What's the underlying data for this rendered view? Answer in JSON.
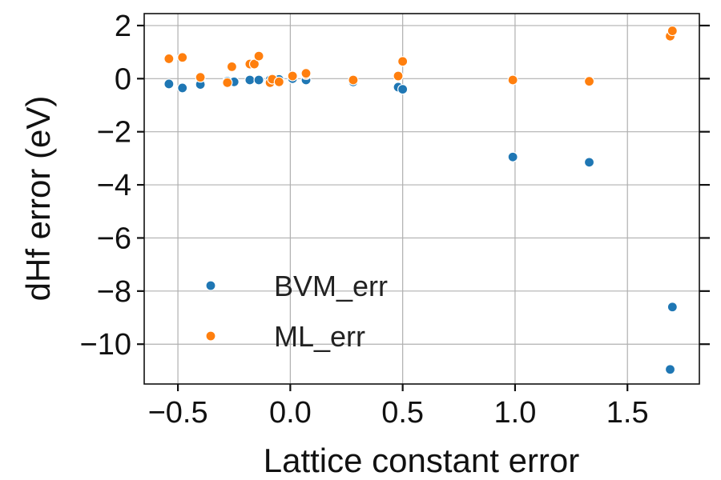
{
  "chart_data": {
    "type": "scatter",
    "title": "",
    "xlabel": "Lattice constant error",
    "ylabel": "dHf error (eV)",
    "xlim": [
      -0.65,
      1.82
    ],
    "ylim": [
      -11.5,
      2.45
    ],
    "xticks": [
      -0.5,
      0.0,
      0.5,
      1.0,
      1.5
    ],
    "xtick_labels": [
      "−0.5",
      "0.0",
      "0.5",
      "1.0",
      "1.5"
    ],
    "yticks": [
      2,
      0,
      -2,
      -4,
      -6,
      -8,
      -10
    ],
    "ytick_labels": [
      "2",
      "0",
      "−2",
      "−4",
      "−6",
      "−8",
      "−10"
    ],
    "grid": true,
    "legend_position": "lower-left",
    "series": [
      {
        "name": "BVM_err",
        "color": "#1f77b4",
        "points": [
          [
            -0.54,
            -0.2
          ],
          [
            -0.48,
            -0.35
          ],
          [
            -0.4,
            -0.22
          ],
          [
            -0.28,
            -0.1
          ],
          [
            -0.25,
            -0.12
          ],
          [
            -0.18,
            -0.05
          ],
          [
            -0.14,
            -0.05
          ],
          [
            -0.09,
            -0.04
          ],
          [
            -0.05,
            -0.03
          ],
          [
            0.01,
            0.0
          ],
          [
            0.07,
            -0.05
          ],
          [
            0.28,
            -0.12
          ],
          [
            0.48,
            -0.32
          ],
          [
            0.5,
            -0.4
          ],
          [
            0.99,
            -2.95
          ],
          [
            1.33,
            -3.15
          ],
          [
            1.7,
            -8.6
          ],
          [
            1.69,
            -10.95
          ]
        ]
      },
      {
        "name": "ML_err",
        "color": "#ff7f0e",
        "points": [
          [
            -0.54,
            0.75
          ],
          [
            -0.48,
            0.8
          ],
          [
            -0.4,
            0.05
          ],
          [
            -0.28,
            -0.15
          ],
          [
            -0.26,
            0.45
          ],
          [
            -0.18,
            0.55
          ],
          [
            -0.16,
            0.55
          ],
          [
            -0.14,
            0.85
          ],
          [
            -0.09,
            -0.15
          ],
          [
            -0.08,
            -0.02
          ],
          [
            -0.05,
            -0.12
          ],
          [
            0.01,
            0.1
          ],
          [
            0.07,
            0.15
          ],
          [
            0.07,
            0.2
          ],
          [
            0.28,
            -0.05
          ],
          [
            0.48,
            0.1
          ],
          [
            0.5,
            0.65
          ],
          [
            0.99,
            -0.05
          ],
          [
            1.33,
            -0.1
          ],
          [
            1.69,
            1.6
          ],
          [
            1.7,
            1.8
          ]
        ]
      }
    ]
  }
}
